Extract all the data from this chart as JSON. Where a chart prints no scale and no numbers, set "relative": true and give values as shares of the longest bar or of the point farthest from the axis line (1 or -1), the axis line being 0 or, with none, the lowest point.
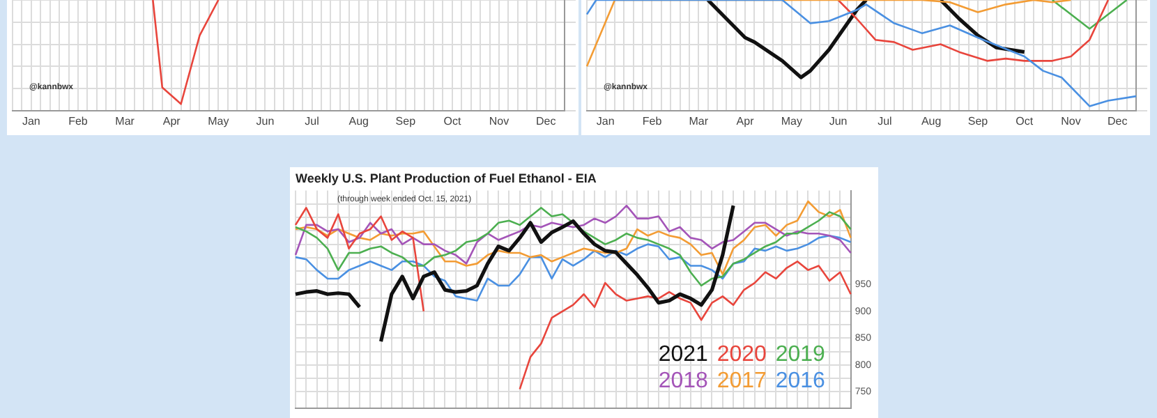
{
  "chart_data": [
    {
      "type": "line",
      "relative": true,
      "categories": [
        null,
        null,
        "Jan",
        null,
        null,
        null,
        null,
        "Feb",
        null,
        null,
        null,
        null,
        "Mar",
        null,
        null,
        null,
        null,
        "Apr",
        null,
        null,
        null,
        null,
        "May",
        null,
        null,
        null,
        null,
        "Jun",
        null,
        null,
        null,
        null,
        "Jul",
        null,
        null,
        null,
        null,
        "Aug",
        null,
        null,
        null,
        null,
        "Sep",
        null,
        null,
        null,
        null,
        "Oct",
        null,
        null,
        null,
        null,
        "Nov",
        null,
        null,
        null,
        null,
        "Dec",
        null,
        null
      ],
      "grid": true,
      "tick_labels": "x",
      "annotations": [
        "@kannbwx"
      ],
      "series": [
        {
          "color": "#e8453c",
          "values": [
            null,
            null,
            null,
            null,
            null,
            null,
            null,
            null,
            null,
            null,
            null,
            null,
            null,
            null,
            null,
            1,
            0.21,
            null,
            0.06,
            null,
            0.68,
            null,
            1,
            null,
            null,
            null,
            null,
            null,
            null,
            null,
            null,
            null,
            null,
            null,
            null,
            null,
            null,
            null,
            null,
            null,
            null,
            null,
            null,
            null,
            null,
            null,
            null,
            null,
            null,
            null,
            null,
            null,
            null,
            null,
            null,
            null,
            null,
            null,
            null,
            null
          ]
        }
      ]
    },
    {
      "type": "line",
      "relative": true,
      "categories": [
        null,
        null,
        "Jan",
        null,
        null,
        null,
        null,
        "Feb",
        null,
        null,
        null,
        null,
        "Mar",
        null,
        null,
        null,
        null,
        "Apr",
        null,
        null,
        null,
        null,
        "May",
        null,
        null,
        null,
        null,
        "Jun",
        null,
        null,
        null,
        null,
        "Jul",
        null,
        null,
        null,
        null,
        "Aug",
        null,
        null,
        null,
        null,
        "Sep",
        null,
        null,
        null,
        null,
        "Oct",
        null,
        null,
        null,
        null,
        "Nov",
        null,
        null,
        null,
        null,
        "Dec",
        null,
        null
      ],
      "grid": true,
      "tick_labels": "x",
      "annotations": [
        "@kannbwx"
      ],
      "series": [
        {
          "color": "#4a90e2",
          "values": [
            0.87,
            1,
            null,
            null,
            null,
            null,
            null,
            null,
            null,
            null,
            null,
            null,
            null,
            null,
            null,
            null,
            null,
            null,
            null,
            null,
            null,
            1,
            null,
            null,
            0.79,
            null,
            0.81,
            null,
            null,
            0.91,
            0.96,
            null,
            null,
            0.79,
            null,
            null,
            0.7,
            null,
            null,
            0.77,
            null,
            null,
            0.66,
            null,
            null,
            null,
            null,
            0.49,
            null,
            0.36,
            null,
            0.3,
            null,
            null,
            0.04,
            null,
            0.09,
            null,
            null,
            0.13
          ]
        },
        {
          "color": "#f39c34",
          "values": [
            0.4,
            null,
            null,
            1,
            null,
            null,
            null,
            null,
            null,
            null,
            null,
            null,
            null,
            null,
            null,
            null,
            null,
            null,
            null,
            null,
            null,
            null,
            null,
            null,
            null,
            null,
            null,
            null,
            null,
            null,
            null,
            null,
            null,
            null,
            null,
            null,
            1,
            null,
            null,
            0.98,
            null,
            null,
            0.89,
            null,
            null,
            0.96,
            null,
            null,
            1,
            null,
            0.98,
            null,
            1,
            null,
            null,
            null,
            null,
            null,
            null,
            null
          ]
        },
        {
          "color": "#e8453c",
          "values": [
            null,
            null,
            null,
            null,
            null,
            null,
            null,
            null,
            null,
            null,
            null,
            null,
            null,
            null,
            null,
            null,
            null,
            null,
            null,
            null,
            null,
            null,
            null,
            null,
            null,
            null,
            null,
            1,
            null,
            0.83,
            null,
            0.64,
            null,
            0.62,
            null,
            0.55,
            null,
            null,
            0.6,
            null,
            0.53,
            null,
            null,
            0.45,
            null,
            0.47,
            null,
            0.45,
            null,
            null,
            0.45,
            null,
            0.49,
            null,
            0.64,
            null,
            1,
            null,
            null,
            null
          ]
        },
        {
          "color": "#4caf50",
          "values": [
            null,
            null,
            null,
            null,
            null,
            null,
            null,
            null,
            null,
            null,
            null,
            null,
            null,
            null,
            null,
            null,
            null,
            null,
            null,
            null,
            null,
            null,
            null,
            null,
            null,
            null,
            null,
            null,
            null,
            null,
            null,
            null,
            null,
            null,
            null,
            null,
            null,
            null,
            null,
            null,
            null,
            null,
            null,
            null,
            null,
            null,
            null,
            null,
            null,
            null,
            1,
            null,
            null,
            null,
            0.74,
            null,
            null,
            null,
            1,
            null
          ]
        },
        {
          "color": "#111111",
          "values": [
            null,
            null,
            null,
            null,
            null,
            null,
            null,
            null,
            null,
            null,
            null,
            null,
            null,
            1,
            null,
            0.83,
            null,
            0.66,
            0.62,
            null,
            null,
            0.45,
            null,
            0.3,
            0.36,
            null,
            0.55,
            null,
            0.79,
            0.91,
            1,
            null,
            null,
            null,
            null,
            null,
            null,
            null,
            null,
            null,
            null,
            null,
            null,
            null,
            null,
            null,
            null,
            null,
            null,
            null,
            null,
            null,
            null,
            null,
            null,
            null,
            null,
            null,
            null,
            null
          ]
        },
        {
          "color": "#111111",
          "values": [
            null,
            null,
            null,
            null,
            null,
            null,
            null,
            null,
            null,
            null,
            null,
            null,
            null,
            null,
            null,
            null,
            null,
            null,
            null,
            null,
            null,
            null,
            null,
            null,
            null,
            null,
            null,
            null,
            null,
            null,
            null,
            null,
            null,
            null,
            null,
            null,
            null,
            null,
            1,
            null,
            0.83,
            null,
            0.68,
            null,
            0.57,
            null,
            null,
            0.53,
            null,
            null,
            null,
            null,
            null,
            null,
            null,
            null,
            null,
            null,
            null,
            null
          ]
        }
      ]
    },
    {
      "type": "line",
      "title": "Weekly U.S. Plant Production of Fuel Ethanol - EIA",
      "subtitle": "(through week ended Oct. 15, 2021)",
      "categories": [
        null,
        null,
        null,
        null,
        null,
        null,
        null,
        null,
        null,
        null,
        null,
        null,
        null,
        null,
        null,
        null,
        null,
        null,
        null,
        null,
        null,
        null,
        null,
        null,
        null,
        null,
        null,
        null,
        null,
        null,
        null,
        null,
        null,
        null,
        null,
        null,
        null,
        null,
        null,
        null,
        null,
        null,
        null,
        null,
        null,
        null,
        null,
        null,
        null,
        null,
        null,
        null,
        null
      ],
      "ylim": [
        720,
        1125
      ],
      "yticks": [
        750,
        {
          "value": 775,
          "label": null
        },
        800,
        {
          "value": 825,
          "label": null
        },
        850,
        {
          "value": 875,
          "label": null
        },
        900,
        {
          "value": 925,
          "label": null
        },
        950,
        {
          "value": 975,
          "label": null
        },
        {
          "value": 1000,
          "label": null
        },
        {
          "value": 1025,
          "label": null
        },
        {
          "value": 1050,
          "label": null
        },
        {
          "value": 1075,
          "label": null
        },
        {
          "value": 1100,
          "label": null
        }
      ],
      "grid": true,
      "tick_labels": "y",
      "legend": "bottom right",
      "series": [
        {
          "name": "2021",
          "color": "#111111",
          "values": [
            932,
            936,
            938,
            932,
            934,
            932,
            908,
            null,
            844,
            932,
            965,
            924,
            965,
            973,
            940,
            936,
            938,
            948,
            989,
            1021,
            1013,
            1037,
            1065,
            1029,
            1047,
            1057,
            1068,
            1045,
            1025,
            1013,
            1010,
            989,
            968,
            944,
            916,
            920,
            932,
            924,
            912,
            940,
            1005,
            1097,
            null,
            null,
            null,
            null,
            null,
            null,
            null,
            null,
            null,
            null,
            null
          ]
        },
        {
          "name": "2020",
          "color": "#e8453c",
          "values": [
            1061,
            1093,
            1053,
            1037,
            1081,
            1017,
            1045,
            1053,
            1077,
            1033,
            1049,
            1037,
            900,
            null,
            null,
            null,
            null,
            null,
            null,
            null,
            null,
            755,
            815,
            840,
            888,
            900,
            912,
            932,
            908,
            953,
            932,
            920,
            924,
            928,
            924,
            936,
            924,
            916,
            884,
            916,
            928,
            912,
            940,
            953,
            973,
            961,
            981,
            993,
            977,
            985,
            957,
            973,
            932
          ]
        },
        {
          "name": "2019",
          "color": "#4caf50",
          "values": [
            1057,
            1049,
            1037,
            1017,
            977,
            1009,
            1009,
            1017,
            1021,
            1009,
            1001,
            985,
            985,
            1001,
            1005,
            1013,
            1029,
            1033,
            1045,
            1065,
            1069,
            1061,
            1077,
            1093,
            1077,
            1081,
            1065,
            1049,
            1037,
            1025,
            1033,
            1045,
            1037,
            1033,
            1025,
            1017,
            1005,
            973,
            948,
            961,
            965,
            989,
            997,
            1009,
            1021,
            1029,
            1045,
            1045,
            1057,
            1069,
            1085,
            1077,
            1053
          ]
        },
        {
          "name": "2018",
          "color": "#a455b8",
          "values": [
            1005,
            1061,
            1061,
            1049,
            1053,
            1029,
            1037,
            1065,
            1045,
            1053,
            1025,
            1037,
            1025,
            1025,
            1013,
            1005,
            989,
            1029,
            1045,
            1033,
            1041,
            1049,
            1061,
            1057,
            1065,
            1061,
            1057,
            1061,
            1073,
            1065,
            1077,
            1097,
            1073,
            1073,
            1077,
            1049,
            1057,
            1037,
            1033,
            1017,
            1029,
            1033,
            1049,
            1065,
            1065,
            1053,
            1041,
            1049,
            1045,
            1045,
            1041,
            1033,
            1009
          ]
        },
        {
          "name": "2017",
          "color": "#f39c34",
          "values": [
            1053,
            1057,
            1053,
            1041,
            1053,
            1045,
            1037,
            1033,
            1045,
            1041,
            1045,
            1045,
            1049,
            1021,
            993,
            993,
            985,
            989,
            1005,
            1013,
            1009,
            1009,
            1001,
            1005,
            993,
            1001,
            1009,
            1017,
            1013,
            1009,
            1009,
            1017,
            1053,
            1041,
            1049,
            1041,
            1037,
            1025,
            1005,
            1009,
            969,
            1017,
            1033,
            1057,
            1061,
            1041,
            1061,
            1069,
            1105,
            1085,
            1077,
            1089,
            1037
          ]
        },
        {
          "name": "2016",
          "color": "#4a90e2",
          "values": [
            1001,
            997,
            977,
            961,
            961,
            977,
            985,
            993,
            985,
            977,
            993,
            993,
            985,
            965,
            957,
            928,
            924,
            920,
            961,
            948,
            948,
            969,
            1001,
            1001,
            961,
            997,
            985,
            997,
            1013,
            1001,
            1013,
            1005,
            1017,
            1025,
            1021,
            997,
            1001,
            985,
            985,
            977,
            961,
            989,
            993,
            1017,
            1013,
            1021,
            1013,
            1017,
            1025,
            1037,
            1041,
            1037,
            1029
          ]
        }
      ]
    }
  ]
}
